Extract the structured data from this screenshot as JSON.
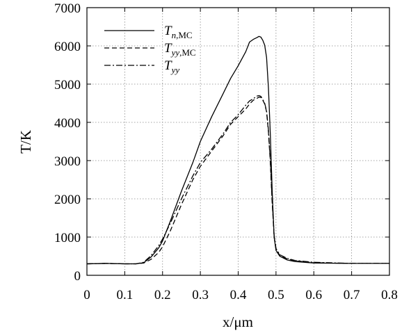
{
  "chart_data": {
    "type": "line",
    "title": "",
    "xlabel": "x/μm",
    "ylabel": "T/K",
    "xlim": [
      0,
      0.8
    ],
    "ylim": [
      0,
      7000
    ],
    "x_ticks": [
      0,
      0.1,
      0.2,
      0.3,
      0.4,
      0.5,
      0.6,
      0.7,
      0.8
    ],
    "x_tick_labels": [
      "0",
      "0.1",
      "0.2",
      "0.3",
      "0.4",
      "0.5",
      "0.6",
      "0.7",
      "0.8"
    ],
    "y_ticks": [
      0,
      1000,
      2000,
      3000,
      4000,
      5000,
      6000,
      7000
    ],
    "y_tick_labels": [
      "0",
      "1000",
      "2000",
      "3000",
      "4000",
      "5000",
      "6000",
      "7000"
    ],
    "grid": true,
    "legend_position": "top-left",
    "series": [
      {
        "name": "T_n,MC",
        "legend": {
          "main": "T",
          "sub": "n",
          "suffix": ",MC"
        },
        "line_style": "solid",
        "color": "#000000",
        "x": [
          0.0,
          0.05,
          0.1,
          0.13,
          0.15,
          0.17,
          0.19,
          0.2,
          0.22,
          0.25,
          0.28,
          0.3,
          0.33,
          0.36,
          0.38,
          0.4,
          0.42,
          0.43,
          0.44,
          0.45,
          0.455,
          0.46,
          0.465,
          0.47,
          0.475,
          0.48,
          0.485,
          0.49,
          0.495,
          0.5,
          0.51,
          0.53,
          0.55,
          0.6,
          0.7,
          0.8
        ],
        "y": [
          300,
          310,
          300,
          300,
          330,
          480,
          720,
          900,
          1400,
          2200,
          2950,
          3500,
          4150,
          4750,
          5150,
          5480,
          5850,
          6100,
          6170,
          6220,
          6250,
          6230,
          6150,
          6020,
          5700,
          4900,
          3700,
          2200,
          1000,
          650,
          500,
          400,
          360,
          320,
          310,
          310
        ]
      },
      {
        "name": "T_yy,MC",
        "legend": {
          "main": "T",
          "sub": "yy",
          "suffix": ",MC"
        },
        "line_style": "dashed",
        "color": "#000000",
        "x": [
          0.0,
          0.05,
          0.1,
          0.13,
          0.15,
          0.17,
          0.19,
          0.2,
          0.22,
          0.25,
          0.28,
          0.3,
          0.33,
          0.36,
          0.38,
          0.4,
          0.42,
          0.43,
          0.44,
          0.45,
          0.455,
          0.46,
          0.465,
          0.47,
          0.475,
          0.48,
          0.485,
          0.49,
          0.495,
          0.5,
          0.51,
          0.53,
          0.55,
          0.6,
          0.7,
          0.8
        ],
        "y": [
          300,
          310,
          300,
          300,
          320,
          420,
          600,
          750,
          1150,
          1850,
          2500,
          2850,
          3250,
          3650,
          3950,
          4150,
          4350,
          4480,
          4580,
          4630,
          4660,
          4650,
          4580,
          4480,
          4280,
          3750,
          2950,
          1900,
          1000,
          680,
          520,
          430,
          380,
          330,
          310,
          310
        ]
      },
      {
        "name": "T_yy",
        "legend": {
          "main": "T",
          "sub": "yy",
          "suffix": ""
        },
        "line_style": "dashdot",
        "color": "#000000",
        "x": [
          0.0,
          0.05,
          0.1,
          0.13,
          0.15,
          0.17,
          0.19,
          0.2,
          0.22,
          0.25,
          0.28,
          0.3,
          0.33,
          0.36,
          0.38,
          0.4,
          0.42,
          0.43,
          0.44,
          0.45,
          0.455,
          0.46,
          0.465,
          0.47,
          0.475,
          0.48,
          0.485,
          0.49,
          0.495,
          0.5,
          0.51,
          0.53,
          0.55,
          0.6,
          0.7,
          0.8
        ],
        "y": [
          300,
          310,
          300,
          300,
          340,
          520,
          780,
          950,
          1350,
          2000,
          2600,
          2950,
          3300,
          3700,
          4000,
          4200,
          4450,
          4560,
          4620,
          4690,
          4700,
          4680,
          4600,
          4500,
          4300,
          3800,
          3000,
          1950,
          1050,
          700,
          540,
          440,
          390,
          340,
          310,
          310
        ]
      }
    ]
  }
}
